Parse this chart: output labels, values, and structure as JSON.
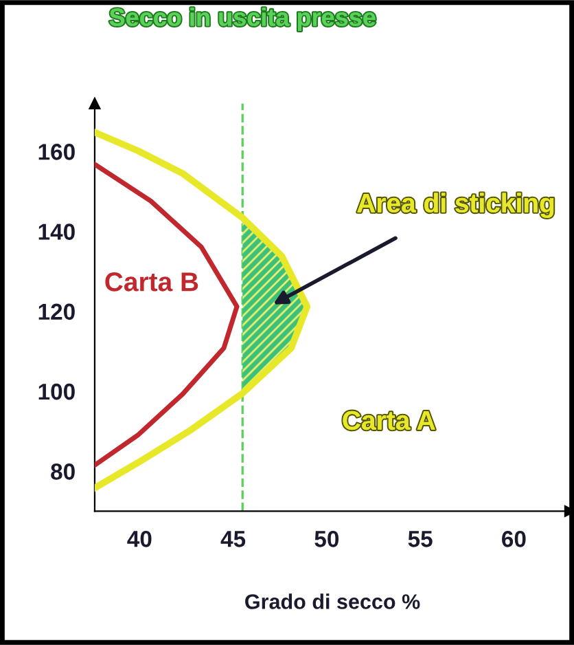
{
  "chart_data": {
    "type": "line",
    "xlabel": "Grado di secco %",
    "xlim": [
      37.6,
      63
    ],
    "ylim": [
      70,
      172
    ],
    "xticks": [
      40,
      45,
      50,
      55,
      60
    ],
    "yticks": [
      80,
      100,
      120,
      140,
      160
    ],
    "grid": false,
    "marker": "none",
    "line_style": "solid",
    "series": [
      {
        "name": "Carta A",
        "color": "#e8e82a",
        "x": [
          37.6,
          39.9,
          42.3,
          45.45,
          47.6,
          48.95,
          48.1,
          45.45,
          42.7,
          39.9,
          37.6
        ],
        "values": [
          164.8,
          160.2,
          154.5,
          143.6,
          133.8,
          121.2,
          110.8,
          99.3,
          90.2,
          82.1,
          75.8
        ]
      },
      {
        "name": "Carta B",
        "color": "#c0282d",
        "x": [
          37.6,
          40.6,
          43.3,
          45.2,
          44.5,
          42.3,
          39.9,
          37.6
        ],
        "values": [
          156.8,
          147.6,
          136.1,
          121.2,
          110.8,
          99.3,
          89.0,
          81.5
        ]
      },
      {
        "type": "area",
        "color": "#3cc07a",
        "x": [
          45.5,
          47.6,
          48.95,
          48.1,
          45.5
        ],
        "values": [
          143.6,
          133.8,
          121.2,
          110.8,
          99.3
        ]
      }
    ],
    "ref_lines": [
      {
        "axis": "x",
        "value": 45.5,
        "label": "Secco in uscita presse",
        "color": "#5ad25a",
        "line_style": "dashed"
      }
    ],
    "annotations": [
      "Area di sticking"
    ]
  }
}
